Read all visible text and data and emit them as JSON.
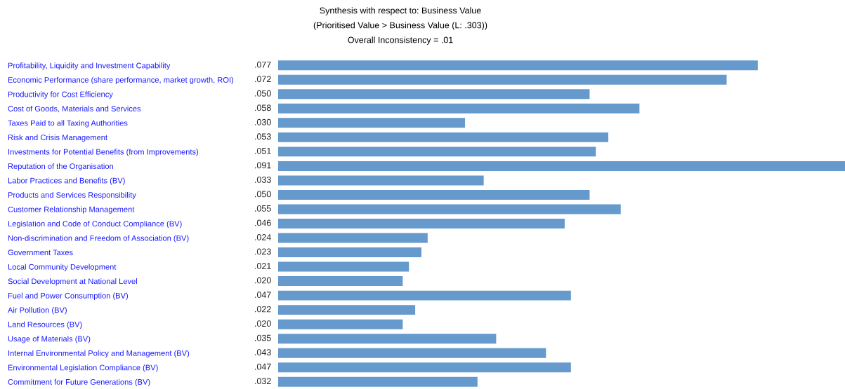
{
  "chart_data": {
    "type": "bar",
    "orientation": "horizontal",
    "title": "Synthesis with respect to: Business Value",
    "subtitle": "(Prioritised Value > Business Value (L: .303))",
    "annotations": [
      "Overall Inconsistency = .01"
    ],
    "categories": [
      "Profitability, Liquidity and Investment Capability",
      "Economic Performance (share performance, market growth, ROI)",
      "Productivity for Cost Efficiency",
      "Cost of Goods, Materials and Services",
      "Taxes Paid to all Taxing Authorities",
      "Risk and Crisis Management",
      "Investments for Potential Benefits (from Improvements)",
      "Reputation of the Organisation",
      "Labor Practices and Benefits (BV)",
      "Products and Services Responsibility",
      "Customer Relationship Management",
      "Legislation and Code of Conduct Compliance (BV)",
      "Non-discrimination and Freedom of Association (BV)",
      "Government Taxes",
      "Local Community Development",
      "Social Development at National Level",
      "Fuel and Power Consumption (BV)",
      "Air Pollution (BV)",
      "Land Resources (BV)",
      "Usage of Materials (BV)",
      "Internal Environmental Policy and Management (BV)",
      "Environmental Legislation Compliance (BV)",
      "Commitment for Future Generations (BV)"
    ],
    "values": [
      0.077,
      0.072,
      0.05,
      0.058,
      0.03,
      0.053,
      0.051,
      0.091,
      0.033,
      0.05,
      0.055,
      0.046,
      0.024,
      0.023,
      0.021,
      0.02,
      0.047,
      0.022,
      0.02,
      0.035,
      0.043,
      0.047,
      0.032
    ],
    "value_labels": [
      ".077",
      ".072",
      ".050",
      ".058",
      ".030",
      ".053",
      ".051",
      ".091",
      ".033",
      ".050",
      ".055",
      ".046",
      ".024",
      ".023",
      ".021",
      ".020",
      ".047",
      ".022",
      ".020",
      ".035",
      ".043",
      ".047",
      ".032"
    ],
    "color": "#6699cc",
    "xlim": [
      0,
      0.091
    ],
    "tick_labels": "y",
    "grid": false,
    "legend": false
  }
}
